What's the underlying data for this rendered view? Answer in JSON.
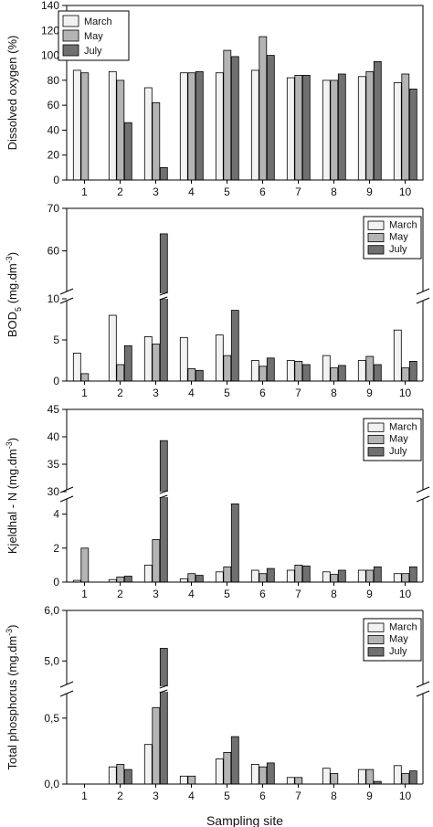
{
  "figure": {
    "xlabel": "Sampling site"
  },
  "colors": {
    "March": "#f2f2f2",
    "May": "#b4b4b4",
    "July": "#707070",
    "stroke": "#000000"
  },
  "chart_data": [
    {
      "type": "bar",
      "categories": [
        "1",
        "2",
        "3",
        "4",
        "5",
        "6",
        "7",
        "8",
        "9",
        "10"
      ],
      "ylabel": "Dissolved oxygen (%)",
      "ylim": [
        0,
        140
      ],
      "yticks": [
        0,
        20,
        40,
        60,
        80,
        100,
        120,
        140
      ],
      "legend_position": "top-left",
      "series": [
        {
          "name": "March",
          "values": [
            88,
            87,
            74,
            86,
            86,
            88,
            82,
            80,
            83,
            78
          ]
        },
        {
          "name": "May",
          "values": [
            86,
            80,
            62,
            86,
            104,
            115,
            84,
            80,
            87,
            85
          ]
        },
        {
          "name": "July",
          "values": [
            null,
            46,
            10,
            87,
            99,
            100,
            84,
            85,
            95,
            73
          ]
        }
      ]
    },
    {
      "type": "bar",
      "categories": [
        "1",
        "2",
        "3",
        "4",
        "5",
        "6",
        "7",
        "8",
        "9",
        "10"
      ],
      "ylabel": "BOD5 (mg.dm-3)",
      "ylabel_parts": {
        "main": "BOD",
        "sub": "5",
        "unit": " (mg.dm",
        "sup": "-3",
        "close": ")"
      },
      "axis_break": {
        "lower": [
          0,
          10
        ],
        "upper": [
          50,
          70
        ]
      },
      "yticks_lower": [
        "0",
        "5",
        "10"
      ],
      "yticks_upper": [
        "60",
        "70"
      ],
      "legend_position": "top-right",
      "series": [
        {
          "name": "March",
          "values": [
            3.4,
            8.0,
            5.4,
            5.3,
            5.6,
            2.5,
            2.5,
            3.1,
            2.5,
            6.2
          ]
        },
        {
          "name": "May",
          "values": [
            0.9,
            2.0,
            4.5,
            1.5,
            3.1,
            1.8,
            2.4,
            1.6,
            3.0,
            1.6
          ]
        },
        {
          "name": "July",
          "values": [
            null,
            4.3,
            64,
            1.3,
            8.6,
            2.8,
            2.0,
            1.9,
            2.0,
            2.4
          ]
        }
      ]
    },
    {
      "type": "bar",
      "categories": [
        "1",
        "2",
        "3",
        "4",
        "5",
        "6",
        "7",
        "8",
        "9",
        "10"
      ],
      "ylabel": "Kjeldhal - N (mg.dm-3)",
      "ylabel_parts": {
        "main": "Kjeldhal - N",
        "sub": "",
        "unit": " (mg.dm",
        "sup": "-3",
        "close": ")"
      },
      "axis_break": {
        "lower": [
          0,
          5
        ],
        "upper": [
          30,
          45
        ]
      },
      "yticks_lower": [
        "0",
        "2",
        "4"
      ],
      "yticks_upper": [
        "30",
        "35",
        "40",
        "45"
      ],
      "legend_position": "top-right",
      "series": [
        {
          "name": "March",
          "values": [
            0.1,
            0.15,
            1.0,
            0.2,
            0.6,
            0.7,
            0.7,
            0.6,
            0.7,
            0.5
          ]
        },
        {
          "name": "May",
          "values": [
            2.0,
            0.3,
            2.5,
            0.5,
            0.9,
            0.5,
            1.0,
            0.45,
            0.7,
            0.5
          ]
        },
        {
          "name": "July",
          "values": [
            null,
            0.35,
            39.3,
            0.4,
            4.6,
            0.8,
            0.95,
            0.7,
            0.9,
            0.9
          ]
        }
      ]
    },
    {
      "type": "bar",
      "categories": [
        "1",
        "2",
        "3",
        "4",
        "5",
        "6",
        "7",
        "8",
        "9",
        "10"
      ],
      "ylabel": "Total phosphorus (mg.dm-3)",
      "ylabel_parts": {
        "main": "Total phosphorus",
        "sub": "",
        "unit": " (mg.dm",
        "sup": "-3",
        "close": ")"
      },
      "axis_break": {
        "lower": [
          0,
          0.7
        ],
        "upper": [
          4.5,
          6.0
        ]
      },
      "yticks_lower": [
        "0,0",
        "0,5"
      ],
      "yticks_upper": [
        "5,0",
        "6,0"
      ],
      "legend_position": "top-right",
      "series": [
        {
          "name": "March",
          "values": [
            null,
            0.13,
            0.3,
            0.06,
            0.19,
            0.15,
            0.05,
            0.12,
            0.11,
            0.14
          ]
        },
        {
          "name": "May",
          "values": [
            null,
            0.15,
            0.58,
            0.06,
            0.24,
            0.13,
            0.05,
            0.08,
            0.11,
            0.08
          ]
        },
        {
          "name": "July",
          "values": [
            null,
            0.11,
            5.25,
            null,
            0.36,
            0.16,
            null,
            null,
            0.02,
            0.1
          ]
        }
      ]
    }
  ]
}
